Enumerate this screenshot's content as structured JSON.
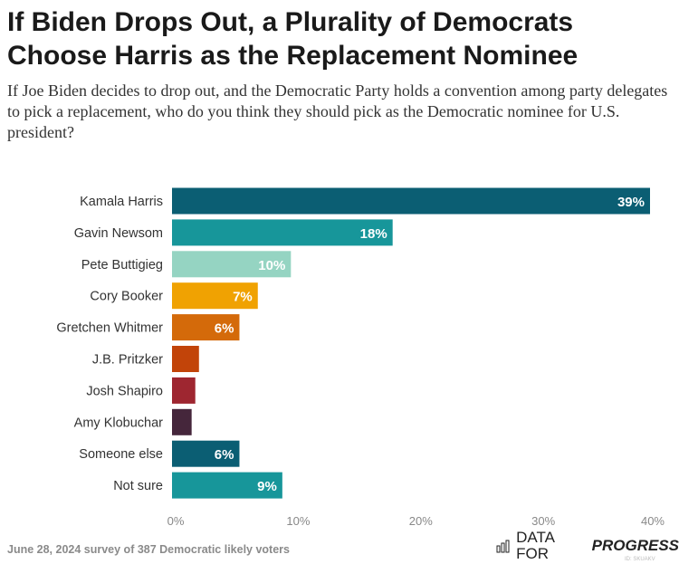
{
  "title": "If Biden Drops Out, a Plurality of Democrats Choose Harris as the Replacement Nominee",
  "subtitle": "If Joe Biden decides to drop out, and the Democratic Party holds a convention among party delegates to pick a replacement, who do you think they should pick as the Democratic nominee for U.S. president?",
  "footer": "June 28, 2024 survey of 387 Democratic likely voters",
  "logo": {
    "text_plain": "DATA FOR",
    "text_bold": "PROGRESS",
    "id": "ID: SKUAKV",
    "icon": "bar-chart-icon"
  },
  "chart_data": {
    "type": "bar",
    "orientation": "horizontal",
    "categories": [
      "Kamala Harris",
      "Gavin Newsom",
      "Pete Buttigieg",
      "Cory Booker",
      "Gretchen Whitmer",
      "J.B. Pritzker",
      "Josh Shapiro",
      "Amy Klobuchar",
      "Someone else",
      "Not sure"
    ],
    "values": [
      39,
      18,
      9.7,
      7,
      5.5,
      2.2,
      1.9,
      1.6,
      5.5,
      9
    ],
    "data_labels": [
      "39%",
      "18%",
      "10%",
      "7%",
      "6%",
      "",
      "",
      "",
      "6%",
      "9%"
    ],
    "colors": [
      "#0b5e73",
      "#17969a",
      "#95d4c2",
      "#f0a202",
      "#d46a0a",
      "#c24409",
      "#9e2630",
      "#45263b",
      "#0b5e73",
      "#17969a"
    ],
    "xlim": [
      0,
      40
    ],
    "xticks": [
      "0%",
      "10%",
      "20%",
      "30%",
      "40%"
    ],
    "grid": false
  }
}
